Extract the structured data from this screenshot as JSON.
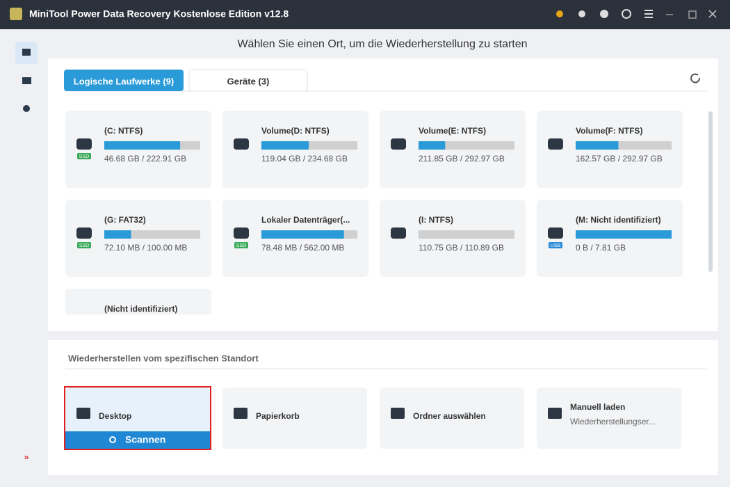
{
  "window": {
    "title": "MiniTool Power Data Recovery Kostenlose Edition v12.8"
  },
  "heading": "Wählen Sie einen Ort, um die Wiederherstellung zu starten",
  "tabs": [
    {
      "label": "Logische Laufwerke (9)",
      "active": true
    },
    {
      "label": "Geräte (3)",
      "active": false
    }
  ],
  "drives": [
    {
      "name": "(C: NTFS)",
      "badge": "SSD",
      "free": 46.68,
      "total": 222.91,
      "size_label": "46.68 GB / 222.91 GB"
    },
    {
      "name": "Volume(D: NTFS)",
      "free": 119.04,
      "total": 234.68,
      "size_label": "119.04 GB / 234.68 GB"
    },
    {
      "name": "Volume(E: NTFS)",
      "free": 211.85,
      "total": 292.97,
      "size_label": "211.85 GB / 292.97 GB"
    },
    {
      "name": "Volume(F: NTFS)",
      "free": 162.57,
      "total": 292.97,
      "size_label": "162.57 GB / 292.97 GB"
    },
    {
      "name": "(G: FAT32)",
      "badge": "SSD",
      "free": 72.1,
      "total": 100.0,
      "size_label": "72.10 MB / 100.00 MB"
    },
    {
      "name": "Lokaler Datenträger(...",
      "badge": "SSD",
      "free": 78.48,
      "total": 562.0,
      "size_label": "78.48 MB / 562.00 MB"
    },
    {
      "name": "(I: NTFS)",
      "free": 110.75,
      "total": 110.89,
      "size_label": "110.75 GB / 110.89 GB"
    },
    {
      "name": "(M: Nicht identifiziert)",
      "badge": "USB",
      "free": 0,
      "total": 7.81,
      "size_label": "0 B / 7.81 GB"
    },
    {
      "name": "(Nicht identifiziert)"
    }
  ],
  "specific": {
    "title": "Wiederherstellen vom spezifischen Standort",
    "locations": [
      {
        "label": "Desktop",
        "action": "Scannen",
        "selected": true
      },
      {
        "label": "Papierkorb"
      },
      {
        "label": "Ordner auswählen"
      },
      {
        "label": "Manuell laden",
        "subtitle": "Wiederherstellungser..."
      }
    ]
  }
}
